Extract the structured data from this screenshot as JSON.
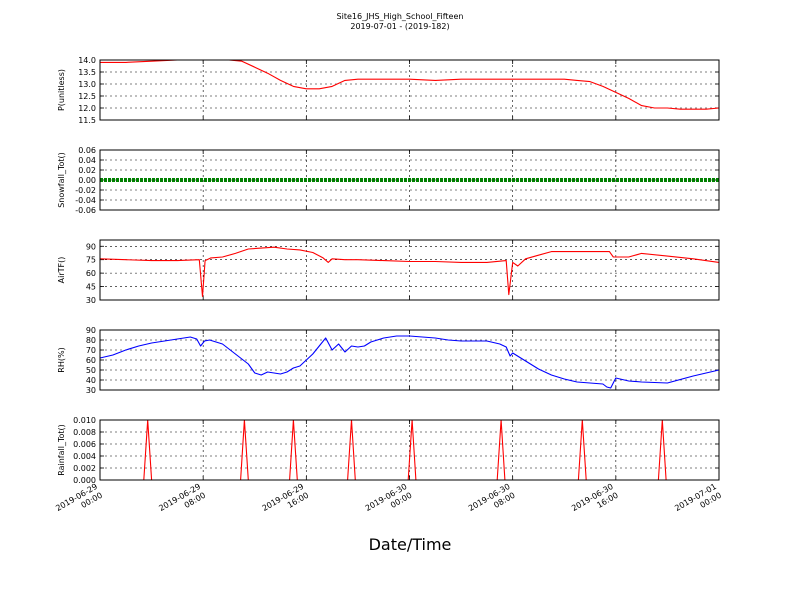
{
  "figure": {
    "title": "Site16_JHS_High_School_Fifteen",
    "subtitle": "2019-07-01 - (2019-182)",
    "xlabel": "Date/Time",
    "x_tick_labels": [
      [
        "2019-06-29",
        "00:00"
      ],
      [
        "2019-06-29",
        "08:00"
      ],
      [
        "2019-06-29",
        "16:00"
      ],
      [
        "2019-06-30",
        "00:00"
      ],
      [
        "2019-06-30",
        "08:00"
      ],
      [
        "2019-06-30",
        "16:00"
      ],
      [
        "2019-07-01",
        "00:00"
      ]
    ]
  },
  "chart_data": [
    {
      "type": "line",
      "ylabel": "P(unitless)",
      "color": "#ff0000",
      "ylim": [
        11.5,
        14.0
      ],
      "yticks": [
        "11.5",
        "12.0",
        "12.5",
        "13.0",
        "13.5",
        "14.0"
      ],
      "grid": true,
      "x_hours": [
        0,
        2,
        4,
        6,
        8,
        10,
        11,
        12,
        13,
        14,
        15,
        16,
        17,
        18,
        19,
        20,
        21,
        22,
        24,
        26,
        28,
        30,
        32,
        34,
        36,
        37,
        38,
        39,
        40,
        41,
        42,
        43,
        44,
        45,
        46,
        47,
        48
      ],
      "values": [
        13.9,
        13.9,
        13.95,
        14.0,
        14.0,
        14.0,
        13.95,
        13.7,
        13.45,
        13.15,
        12.9,
        12.8,
        12.8,
        12.9,
        13.15,
        13.2,
        13.2,
        13.2,
        13.2,
        13.15,
        13.2,
        13.2,
        13.2,
        13.2,
        13.2,
        13.15,
        13.1,
        12.9,
        12.65,
        12.4,
        12.1,
        12.0,
        12.0,
        11.95,
        11.95,
        11.95,
        12.0
      ]
    },
    {
      "type": "line",
      "ylabel": "Snowfall_Tot()",
      "color": "#008000",
      "ylim": [
        -0.06,
        0.06
      ],
      "yticks": [
        "-0.06",
        "-0.04",
        "-0.02",
        "0.00",
        "0.02",
        "0.04",
        "0.06"
      ],
      "grid": true,
      "x_hours": [
        0,
        48
      ],
      "values": [
        0.0,
        0.0
      ]
    },
    {
      "type": "line",
      "ylabel": "AirTF()",
      "color": "#ff0000",
      "ylim": [
        30,
        97
      ],
      "yticks": [
        "30",
        "45",
        "60",
        "75",
        "90"
      ],
      "grid": true,
      "x_hours": [
        0,
        2,
        4,
        6,
        7.7,
        7.95,
        8.15,
        8.6,
        9.5,
        10.5,
        11.5,
        12.5,
        13.5,
        14.5,
        15.5,
        16.5,
        17.3,
        17.7,
        18,
        19,
        20,
        22,
        24,
        26,
        28,
        30,
        31.5,
        31.7,
        32,
        32.4,
        33,
        34,
        35,
        36,
        37,
        38,
        39,
        39.5,
        39.8,
        40,
        41,
        42,
        44,
        46,
        48
      ],
      "values": [
        76,
        75,
        74,
        74,
        75,
        34,
        74,
        77,
        78,
        82,
        87,
        88,
        89,
        87,
        86,
        83,
        77,
        72,
        76,
        75,
        75,
        74,
        73,
        73,
        72,
        72,
        74,
        36,
        72,
        68,
        76,
        80,
        84,
        84,
        84,
        84,
        84,
        84,
        78,
        78,
        78,
        82,
        79,
        76,
        72
      ]
    },
    {
      "type": "line",
      "ylabel": "RH(%)",
      "color": "#0000ff",
      "ylim": [
        30,
        90
      ],
      "yticks": [
        "30",
        "40",
        "50",
        "60",
        "70",
        "80",
        "90"
      ],
      "grid": true,
      "x_hours": [
        0,
        1,
        2,
        3,
        4,
        5,
        6,
        7,
        7.5,
        7.8,
        8.1,
        8.5,
        9.5,
        10.5,
        11.5,
        12,
        12.5,
        13,
        13.5,
        14,
        14.5,
        15,
        15.5,
        16.5,
        17.5,
        18,
        18.5,
        19,
        19.5,
        20,
        20.5,
        21,
        22,
        23,
        24,
        25,
        26,
        27,
        28,
        29,
        30,
        31,
        31.5,
        31.8,
        32,
        33,
        34,
        35,
        36,
        37,
        38,
        39,
        39.3,
        39.6,
        40,
        41,
        42,
        44,
        46,
        48
      ],
      "values": [
        62,
        65,
        70,
        74,
        77,
        79,
        81,
        83,
        81,
        74,
        79,
        80,
        76,
        66,
        56,
        47,
        45,
        48,
        47,
        46,
        48,
        52,
        54,
        66,
        82,
        70,
        76,
        68,
        74,
        73,
        74,
        78,
        82,
        84,
        84,
        83,
        82,
        80,
        79,
        79,
        79,
        76,
        73,
        64,
        67,
        59,
        51,
        45,
        41,
        38,
        37,
        36,
        33,
        32,
        42,
        39,
        38,
        37,
        44,
        50
      ]
    },
    {
      "type": "line",
      "ylabel": "Rainfall_Tot()",
      "color": "#ff0000",
      "ylim": [
        0.0,
        0.01
      ],
      "yticks": [
        "0.000",
        "0.002",
        "0.004",
        "0.006",
        "0.008",
        "0.010"
      ],
      "grid": true,
      "x_hours": [
        0,
        3.4,
        3.7,
        4.0,
        10.9,
        11.2,
        11.5,
        14.7,
        15.0,
        15.3,
        19.2,
        19.5,
        19.8,
        23.9,
        24.2,
        24.5,
        30.8,
        31.1,
        31.4,
        37.1,
        37.4,
        37.7,
        43.3,
        43.6,
        43.9,
        48
      ],
      "values": [
        0,
        0,
        0.01,
        0,
        0,
        0.01,
        0,
        0,
        0.01,
        0,
        0,
        0.01,
        0,
        0,
        0.01,
        0,
        0,
        0.01,
        0,
        0,
        0.01,
        0,
        0,
        0.01,
        0,
        0
      ]
    }
  ]
}
